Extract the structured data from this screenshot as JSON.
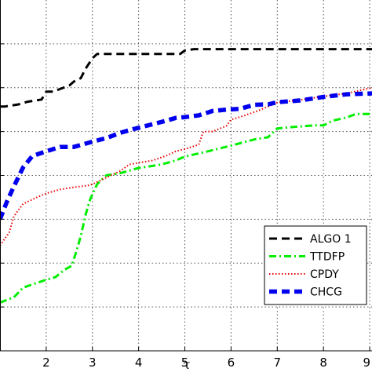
{
  "chart_data": {
    "type": "line",
    "title": "",
    "xlabel": "τ",
    "ylabel": "",
    "xlim": [
      1,
      9.05
    ],
    "ylim": [
      0.2,
      1.0
    ],
    "x_ticks": [
      2,
      3,
      4,
      5,
      6,
      7,
      8,
      9
    ],
    "x_tick_labels": [
      "2",
      "3",
      "4",
      "5",
      "6",
      "7",
      "8",
      "9"
    ],
    "y_grid": [
      0.3,
      0.4,
      0.5,
      0.6,
      0.7,
      0.8,
      0.9
    ],
    "grid": true,
    "legend_position": "bottom-right",
    "series": [
      {
        "name": "ALGO 1",
        "color": "#000000",
        "style": "dashed",
        "points": [
          [
            1,
            0.757
          ],
          [
            1.1,
            0.757
          ],
          [
            1.4,
            0.762
          ],
          [
            1.6,
            0.768
          ],
          [
            1.9,
            0.773
          ],
          [
            2.0,
            0.791
          ],
          [
            2.15,
            0.791
          ],
          [
            2.3,
            0.797
          ],
          [
            2.5,
            0.805
          ],
          [
            2.6,
            0.814
          ],
          [
            2.75,
            0.822
          ],
          [
            2.85,
            0.843
          ],
          [
            3.0,
            0.867
          ],
          [
            3.1,
            0.877
          ],
          [
            3.5,
            0.877
          ],
          [
            4.0,
            0.877
          ],
          [
            4.5,
            0.877
          ],
          [
            4.8,
            0.877
          ],
          [
            4.9,
            0.877
          ],
          [
            5.0,
            0.885
          ],
          [
            5.2,
            0.888
          ],
          [
            6.0,
            0.888
          ],
          [
            7.0,
            0.888
          ],
          [
            8.0,
            0.888
          ],
          [
            9.05,
            0.888
          ]
        ]
      },
      {
        "name": "TTDFP",
        "color": "#00ee00",
        "style": "dashdot",
        "points": [
          [
            1,
            0.31
          ],
          [
            1.3,
            0.322
          ],
          [
            1.5,
            0.344
          ],
          [
            1.8,
            0.355
          ],
          [
            2.0,
            0.362
          ],
          [
            2.2,
            0.368
          ],
          [
            2.4,
            0.385
          ],
          [
            2.55,
            0.394
          ],
          [
            2.65,
            0.426
          ],
          [
            2.75,
            0.462
          ],
          [
            2.85,
            0.509
          ],
          [
            2.95,
            0.545
          ],
          [
            3.1,
            0.58
          ],
          [
            3.3,
            0.6
          ],
          [
            3.6,
            0.605
          ],
          [
            3.8,
            0.611
          ],
          [
            4.0,
            0.617
          ],
          [
            4.2,
            0.62
          ],
          [
            4.5,
            0.625
          ],
          [
            4.8,
            0.634
          ],
          [
            5.0,
            0.643
          ],
          [
            5.5,
            0.655
          ],
          [
            6.0,
            0.668
          ],
          [
            6.5,
            0.682
          ],
          [
            6.8,
            0.687
          ],
          [
            7.0,
            0.707
          ],
          [
            7.3,
            0.71
          ],
          [
            7.8,
            0.714
          ],
          [
            8.0,
            0.714
          ],
          [
            8.2,
            0.725
          ],
          [
            8.5,
            0.732
          ],
          [
            8.7,
            0.74
          ],
          [
            9.05,
            0.74
          ]
        ]
      },
      {
        "name": "CPDY",
        "color": "#e80000",
        "style": "dotted",
        "points": [
          [
            1,
            0.44
          ],
          [
            1.2,
            0.47
          ],
          [
            1.3,
            0.507
          ],
          [
            1.5,
            0.535
          ],
          [
            1.8,
            0.55
          ],
          [
            2.0,
            0.559
          ],
          [
            2.3,
            0.568
          ],
          [
            2.6,
            0.573
          ],
          [
            2.9,
            0.577
          ],
          [
            3.0,
            0.58
          ],
          [
            3.2,
            0.59
          ],
          [
            3.4,
            0.6
          ],
          [
            3.6,
            0.61
          ],
          [
            3.8,
            0.625
          ],
          [
            4.0,
            0.629
          ],
          [
            4.3,
            0.634
          ],
          [
            4.6,
            0.645
          ],
          [
            4.8,
            0.655
          ],
          [
            5.0,
            0.66
          ],
          [
            5.3,
            0.67
          ],
          [
            5.4,
            0.7
          ],
          [
            5.6,
            0.7
          ],
          [
            5.9,
            0.713
          ],
          [
            6.0,
            0.727
          ],
          [
            6.3,
            0.737
          ],
          [
            6.6,
            0.748
          ],
          [
            7.0,
            0.766
          ],
          [
            7.5,
            0.772
          ],
          [
            8.0,
            0.78
          ],
          [
            8.5,
            0.787
          ],
          [
            9.05,
            0.8
          ]
        ]
      },
      {
        "name": "CHCG",
        "color": "#0000ee",
        "style": "dashed-thick",
        "points": [
          [
            1,
            0.5
          ],
          [
            1.15,
            0.54
          ],
          [
            1.3,
            0.575
          ],
          [
            1.5,
            0.618
          ],
          [
            1.7,
            0.644
          ],
          [
            2.0,
            0.655
          ],
          [
            2.3,
            0.665
          ],
          [
            2.6,
            0.665
          ],
          [
            3.0,
            0.677
          ],
          [
            3.3,
            0.685
          ],
          [
            3.6,
            0.697
          ],
          [
            3.9,
            0.706
          ],
          [
            4.2,
            0.714
          ],
          [
            4.5,
            0.722
          ],
          [
            4.8,
            0.731
          ],
          [
            5.0,
            0.733
          ],
          [
            5.3,
            0.737
          ],
          [
            5.6,
            0.747
          ],
          [
            5.9,
            0.75
          ],
          [
            6.2,
            0.752
          ],
          [
            6.5,
            0.761
          ],
          [
            6.8,
            0.762
          ],
          [
            7.0,
            0.767
          ],
          [
            7.5,
            0.771
          ],
          [
            8.0,
            0.779
          ],
          [
            8.5,
            0.785
          ],
          [
            9.05,
            0.787
          ]
        ]
      }
    ]
  }
}
